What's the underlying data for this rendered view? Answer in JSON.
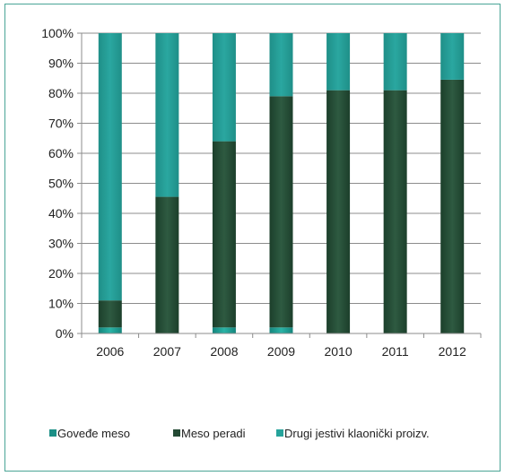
{
  "chart_data": {
    "type": "bar",
    "stacked": true,
    "percent": true,
    "categories": [
      "2006",
      "2007",
      "2008",
      "2009",
      "2010",
      "2011",
      "2012"
    ],
    "series": [
      {
        "name": "Goveđe meso",
        "values": [
          2,
          0,
          2,
          2,
          0,
          0,
          0
        ],
        "color": "#1b8f86"
      },
      {
        "name": "Meso peradi",
        "values": [
          9,
          45.5,
          62,
          77,
          81,
          81,
          84.5
        ],
        "color": "#244a34"
      },
      {
        "name": "Drugi jestivi klaonički proizv.",
        "values": [
          89,
          54.5,
          36,
          21,
          19,
          19,
          15.5
        ],
        "color": "#26a39b"
      }
    ],
    "yTicks": [
      "0%",
      "10%",
      "20%",
      "30%",
      "40%",
      "50%",
      "60%",
      "70%",
      "80%",
      "90%",
      "100%"
    ],
    "ylim": [
      0,
      100
    ],
    "grid": true,
    "legend": "bottom",
    "title": "",
    "xlabel": "",
    "ylabel": ""
  }
}
